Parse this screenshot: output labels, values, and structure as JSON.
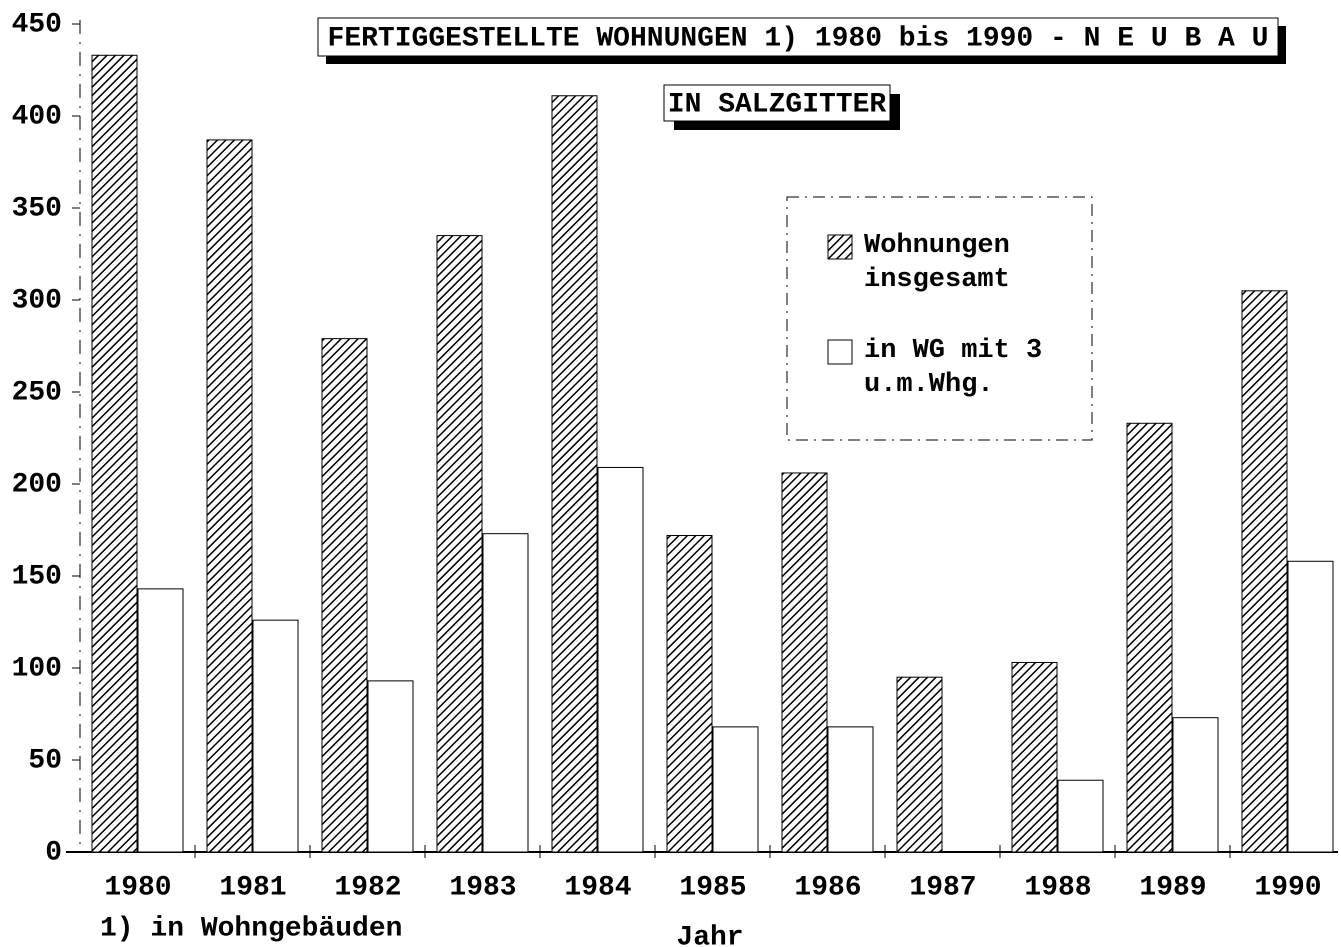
{
  "chart_data": {
    "type": "bar",
    "title": "FERTIGGESTELLTE WOHNUNGEN 1) 1980 bis 1990 - N E U B A U",
    "subtitle": "IN SALZGITTER",
    "x_label": "Jahr",
    "footnote": "1) in Wohngebäuden",
    "categories": [
      "1980",
      "1981",
      "1982",
      "1983",
      "1984",
      "1985",
      "1986",
      "1987",
      "1988",
      "1989",
      "1990"
    ],
    "series": [
      {
        "name": "Wohnungen insgesamt",
        "color": "#000000",
        "hatch": true,
        "values": [
          433,
          387,
          279,
          335,
          411,
          172,
          206,
          95,
          103,
          233,
          305
        ]
      },
      {
        "name": "in WG mit 3 u.m.Whg.",
        "color": "#000000",
        "hatch": false,
        "values": [
          143,
          126,
          93,
          173,
          209,
          68,
          68,
          0,
          39,
          73,
          158
        ]
      }
    ],
    "ylim": [
      0,
      450
    ],
    "yticks": [
      0,
      50,
      100,
      150,
      200,
      250,
      300,
      350,
      400,
      450
    ]
  }
}
